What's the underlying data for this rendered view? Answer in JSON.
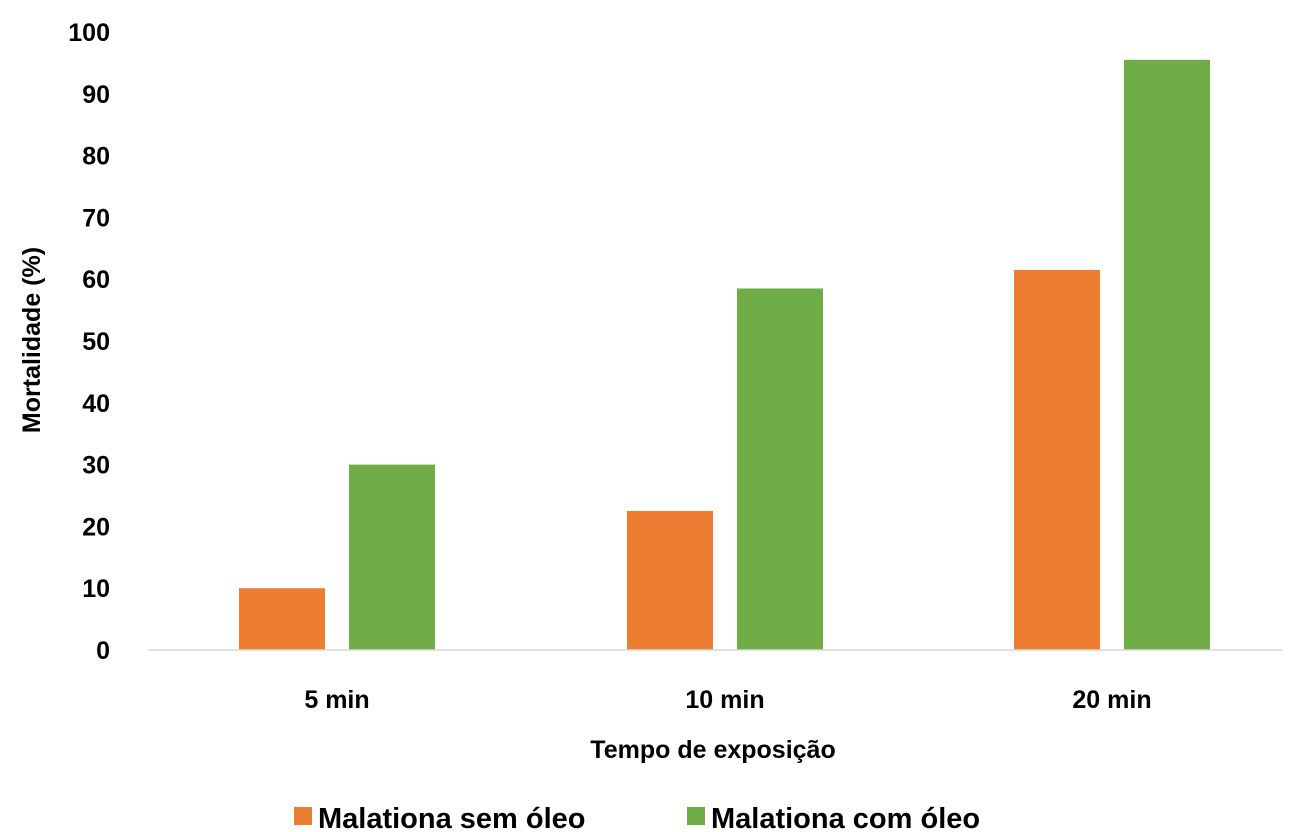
{
  "chart_data": {
    "type": "bar",
    "categories": [
      "5 min",
      "10 min",
      "20 min"
    ],
    "series": [
      {
        "name": "Malationa sem óleo",
        "values": [
          10,
          22.5,
          61.5
        ],
        "color": "#ED7D31"
      },
      {
        "name": "Malationa com óleo",
        "values": [
          30,
          58.5,
          95.5
        ],
        "color": "#70AD47"
      }
    ],
    "title": "",
    "xlabel": "Tempo de exposição",
    "ylabel": "Mortalidade (%)",
    "ylim": [
      0,
      100
    ],
    "yticks": [
      0,
      10,
      20,
      30,
      40,
      50,
      60,
      70,
      80,
      90,
      100
    ],
    "grid": false,
    "legend": "bottom",
    "axis_color": "#D9D9D9"
  }
}
